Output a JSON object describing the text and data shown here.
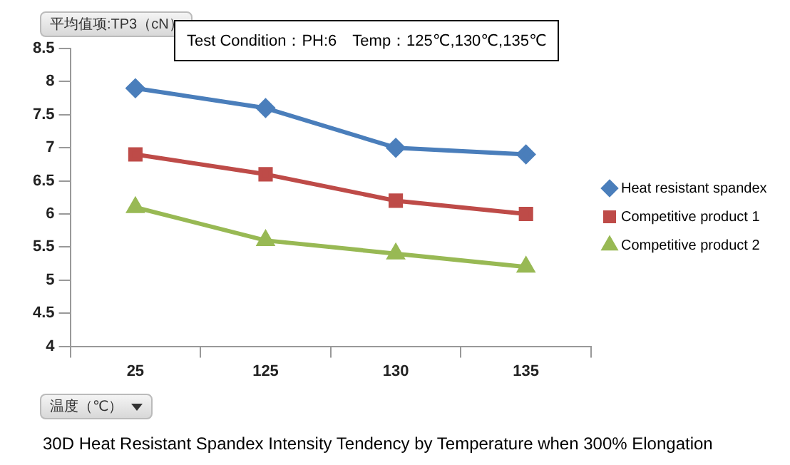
{
  "chart_data": {
    "type": "line",
    "title": "30D Heat Resistant Spandex Intensity Tendency by Temperature when 300% Elongation",
    "xlabel": "温度（℃）",
    "ylabel": "平均值项:TP3（cN）",
    "annotations": [
      "Test Condition：PH:6　Temp：125℃,130℃,135℃"
    ],
    "categories": [
      "25",
      "125",
      "130",
      "135"
    ],
    "series": [
      {
        "name": "Heat resistant spandex",
        "color": "#4a7ebb",
        "marker": "diamond",
        "values": [
          7.9,
          7.6,
          7.0,
          6.9
        ]
      },
      {
        "name": "Competitive product 1",
        "color": "#be4b48",
        "marker": "square",
        "values": [
          6.9,
          6.6,
          6.2,
          6.0
        ]
      },
      {
        "name": "Competitive product 2",
        "color": "#98b954",
        "marker": "triangle",
        "values": [
          6.1,
          5.6,
          5.4,
          5.2
        ]
      }
    ],
    "ylim": [
      4,
      8.5
    ],
    "yticks": [
      4,
      4.5,
      5,
      5.5,
      6,
      6.5,
      7,
      7.5,
      8,
      8.5
    ],
    "grid": false,
    "legend": "right",
    "line_style": "solid"
  }
}
